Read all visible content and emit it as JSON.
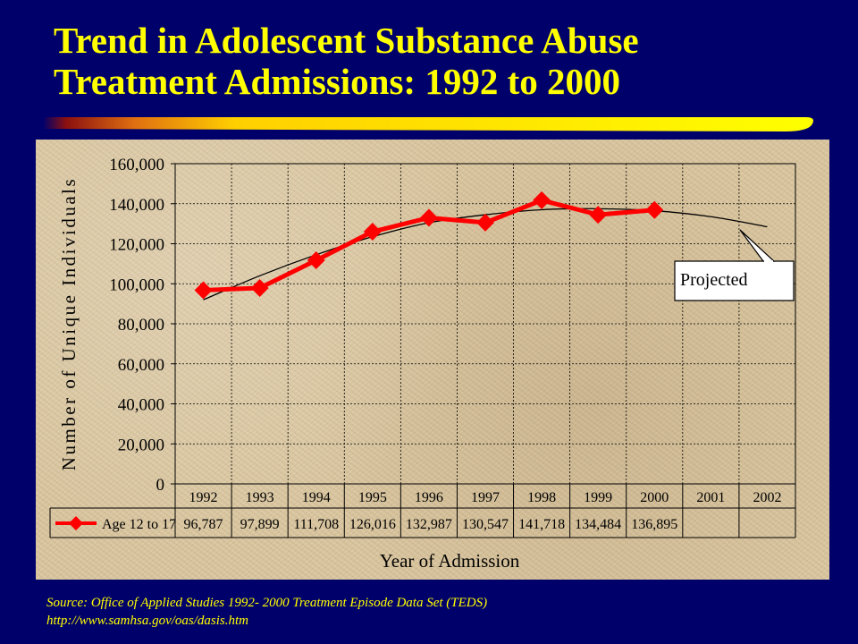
{
  "title": {
    "line1": "Trend in Adolescent Substance Abuse",
    "line2": "Treatment Admissions: 1992 to 2000"
  },
  "colors": {
    "background": "#00006b",
    "title": "#ffff00",
    "series": "#ff0000",
    "trend": "#000000",
    "panel": "#d8c49c"
  },
  "chart_data": {
    "type": "line",
    "xlabel": "Year of Admission",
    "ylabel": "Number of Unique Individuals",
    "ylim": [
      0,
      160000
    ],
    "yticks": [
      "0",
      "20,000",
      "40,000",
      "60,000",
      "80,000",
      "100,000",
      "120,000",
      "140,000",
      "160,000"
    ],
    "ytick_values": [
      0,
      20000,
      40000,
      60000,
      80000,
      100000,
      120000,
      140000,
      160000
    ],
    "categories": [
      "1992",
      "1993",
      "1994",
      "1995",
      "1996",
      "1997",
      "1998",
      "1999",
      "2000",
      "2001",
      "2002"
    ],
    "grid": true,
    "series": [
      {
        "name": "Age 12 to 17",
        "values": [
          96787,
          97899,
          111708,
          126016,
          132987,
          130547,
          141718,
          134484,
          136895,
          null,
          null
        ],
        "labels": [
          "96,787",
          "97,899",
          "111,708",
          "126,016",
          "132,987",
          "130,547",
          "141,718",
          "134,484",
          "136,895",
          "",
          ""
        ]
      }
    ],
    "trend": {
      "values": [
        92000,
        104000,
        114500,
        123500,
        130500,
        134500,
        137000,
        137500,
        136500,
        133500,
        128500
      ]
    },
    "annotation": "Projected",
    "legend_position": "data-table"
  },
  "source": {
    "line1": "Source:  Office of Applied Studies 1992- 2000 Treatment Episode Data Set (TEDS)",
    "line2": "http://www.samhsa.gov/oas/dasis.htm"
  }
}
